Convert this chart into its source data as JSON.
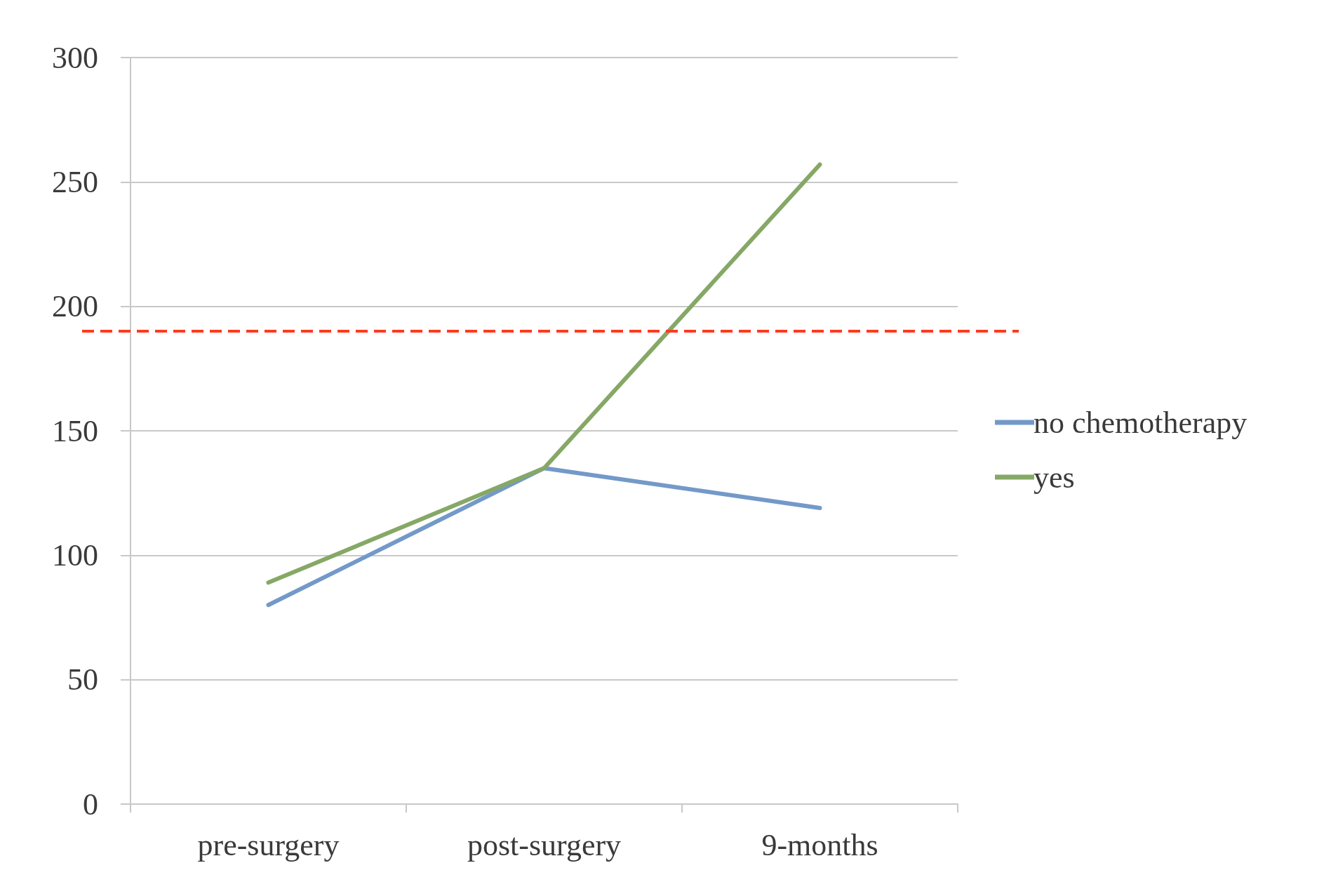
{
  "chart_data": {
    "type": "line",
    "categories": [
      "pre-surgery",
      "post-surgery",
      "9-months"
    ],
    "series": [
      {
        "name": "no chemotherapy",
        "color": "#7399c9",
        "values": [
          80,
          135,
          119
        ]
      },
      {
        "name": "yes",
        "color": "#86a866",
        "values": [
          89,
          135,
          257
        ]
      }
    ],
    "ylim": [
      0,
      300
    ],
    "yticks": [
      0,
      50,
      100,
      150,
      200,
      250,
      300
    ],
    "ref_lines": [
      {
        "axis": "y",
        "value": 190,
        "color": "#ff3b1f",
        "line_style": "dashed"
      }
    ],
    "grid": "y",
    "legend": "right",
    "marker": "none",
    "line_style": "solid"
  }
}
